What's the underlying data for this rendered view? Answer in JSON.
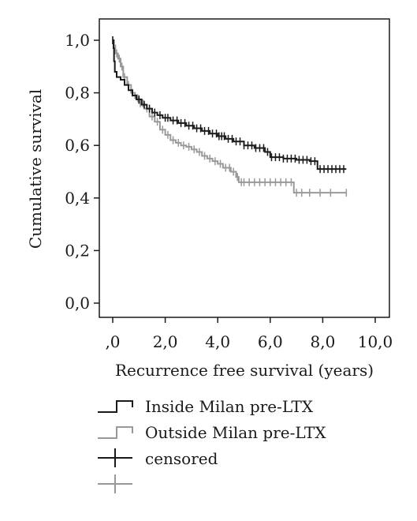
{
  "chart_data": {
    "type": "line",
    "step": true,
    "xlabel": "Recurrence free survival (years)",
    "ylabel": "Cumulative survival",
    "xlim": [
      0,
      10
    ],
    "ylim": [
      0,
      1
    ],
    "x_ticks": [
      0,
      2,
      4,
      6,
      8,
      10
    ],
    "x_tick_labels": [
      ",0",
      "2,0",
      "4,0",
      "6,0",
      "8,0",
      "10,0"
    ],
    "y_ticks": [
      0,
      0.2,
      0.4,
      0.6,
      0.8,
      1.0
    ],
    "y_tick_labels": [
      "0,0",
      "0,2",
      "0,4",
      "0,6",
      "0,8",
      "1,0"
    ],
    "grid": false,
    "legend_position": "bottom",
    "series": [
      {
        "name": "Inside Milan pre-LTX",
        "color": "#1a1a1a",
        "points": [
          [
            0,
            1.0
          ],
          [
            0.03,
            0.97
          ],
          [
            0.05,
            0.92
          ],
          [
            0.08,
            0.88
          ],
          [
            0.15,
            0.86
          ],
          [
            0.3,
            0.85
          ],
          [
            0.45,
            0.83
          ],
          [
            0.6,
            0.81
          ],
          [
            0.75,
            0.79
          ],
          [
            0.9,
            0.775
          ],
          [
            1.1,
            0.755
          ],
          [
            1.3,
            0.74
          ],
          [
            1.5,
            0.725
          ],
          [
            1.7,
            0.715
          ],
          [
            1.9,
            0.705
          ],
          [
            2.2,
            0.695
          ],
          [
            2.5,
            0.685
          ],
          [
            2.8,
            0.675
          ],
          [
            3.1,
            0.665
          ],
          [
            3.4,
            0.655
          ],
          [
            3.7,
            0.645
          ],
          [
            4.0,
            0.635
          ],
          [
            4.3,
            0.625
          ],
          [
            4.6,
            0.615
          ],
          [
            5.0,
            0.6
          ],
          [
            5.4,
            0.59
          ],
          [
            5.8,
            0.575
          ],
          [
            6.0,
            0.555
          ],
          [
            6.5,
            0.55
          ],
          [
            7.0,
            0.545
          ],
          [
            7.5,
            0.54
          ],
          [
            7.8,
            0.51
          ],
          [
            8.9,
            0.51
          ]
        ],
        "censored_x": [
          0,
          1.0,
          1.2,
          1.4,
          1.6,
          1.8,
          2.0,
          2.1,
          2.3,
          2.45,
          2.6,
          2.75,
          2.9,
          3.05,
          3.2,
          3.35,
          3.5,
          3.65,
          3.8,
          3.95,
          4.05,
          4.15,
          4.25,
          4.4,
          4.55,
          4.7,
          4.85,
          5.0,
          5.15,
          5.3,
          5.45,
          5.6,
          5.75,
          5.9,
          6.05,
          6.2,
          6.35,
          6.5,
          6.65,
          6.8,
          6.95,
          7.1,
          7.25,
          7.4,
          7.55,
          7.7,
          7.9,
          8.05,
          8.2,
          8.35,
          8.5,
          8.65,
          8.8
        ]
      },
      {
        "name": "Outside Milan pre-LTX",
        "color": "#999999",
        "points": [
          [
            0,
            1.0
          ],
          [
            0.05,
            0.98
          ],
          [
            0.1,
            0.95
          ],
          [
            0.2,
            0.93
          ],
          [
            0.3,
            0.9
          ],
          [
            0.4,
            0.86
          ],
          [
            0.55,
            0.83
          ],
          [
            0.7,
            0.8
          ],
          [
            0.85,
            0.78
          ],
          [
            1.0,
            0.76
          ],
          [
            1.2,
            0.74
          ],
          [
            1.4,
            0.71
          ],
          [
            1.6,
            0.69
          ],
          [
            1.8,
            0.66
          ],
          [
            2.0,
            0.64
          ],
          [
            2.2,
            0.62
          ],
          [
            2.4,
            0.61
          ],
          [
            2.6,
            0.6
          ],
          [
            2.8,
            0.595
          ],
          [
            3.0,
            0.585
          ],
          [
            3.2,
            0.575
          ],
          [
            3.4,
            0.56
          ],
          [
            3.6,
            0.55
          ],
          [
            3.8,
            0.54
          ],
          [
            4.0,
            0.53
          ],
          [
            4.2,
            0.515
          ],
          [
            4.5,
            0.5
          ],
          [
            4.7,
            0.48
          ],
          [
            4.8,
            0.46
          ],
          [
            5.5,
            0.46
          ],
          [
            6.0,
            0.46
          ],
          [
            6.9,
            0.42
          ],
          [
            8.9,
            0.42
          ]
        ],
        "censored_x": [
          0,
          0.15,
          0.25,
          0.35,
          0.45,
          0.6,
          0.75,
          0.95,
          1.05,
          1.15,
          1.3,
          1.5,
          1.7,
          1.9,
          2.1,
          2.3,
          2.5,
          2.7,
          2.9,
          3.1,
          3.3,
          3.5,
          3.7,
          3.9,
          4.1,
          4.3,
          4.45,
          4.6,
          4.75,
          4.9,
          5.0,
          5.2,
          5.4,
          5.6,
          5.8,
          6.0,
          6.2,
          6.4,
          6.6,
          6.8,
          7.0,
          7.2,
          7.5,
          7.9,
          8.3,
          8.9
        ]
      }
    ],
    "legend": [
      {
        "label": "Inside Milan pre-LTX",
        "kind": "step",
        "color": "#1a1a1a"
      },
      {
        "label": "Outside Milan pre-LTX",
        "kind": "step",
        "color": "#999999"
      },
      {
        "label": "censored",
        "kind": "cross",
        "color": "#1a1a1a"
      },
      {
        "label": "",
        "kind": "cross",
        "color": "#999999"
      }
    ]
  }
}
